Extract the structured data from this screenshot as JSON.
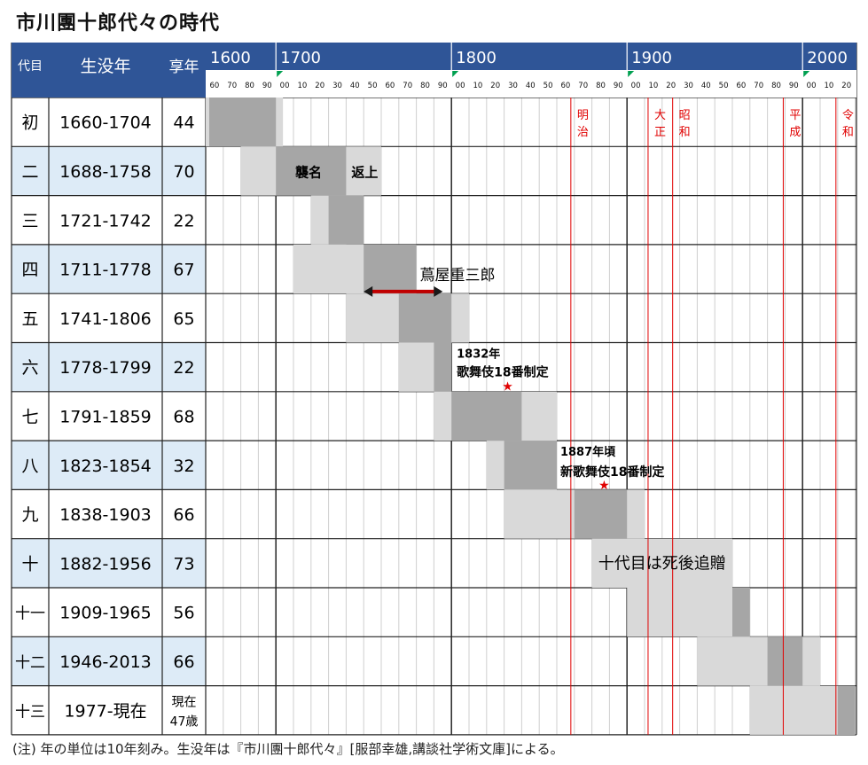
{
  "title": "市川團十郎代々の時代",
  "footnote": "(注) 年の単位は10年刻み。生没年は『市川團十郎代々』[服部幸雄,講談社学術文庫]による。",
  "colors": {
    "header_bg": "#2F5597",
    "header_text": "#ffffff",
    "row_alt_bg": "#DDEBF7",
    "life_bar": "#D9D9D9",
    "tenure_bar": "#A6A6A6",
    "era_line": "#E00000",
    "arrow": "#C00000",
    "star": "#E00000"
  },
  "header": {
    "col_gen": "代目",
    "col_life": "生没年",
    "col_age": "享年"
  },
  "century_labels": [
    "1600",
    "1700",
    "1800",
    "1900",
    "2000"
  ],
  "decade_labels": [
    "60",
    "70",
    "80",
    "90",
    "00",
    "10",
    "20",
    "30",
    "40",
    "50",
    "60",
    "70",
    "80",
    "90",
    "00",
    "10",
    "20",
    "30",
    "40",
    "50",
    "60",
    "70",
    "80",
    "90",
    "00",
    "10",
    "20",
    "30",
    "40",
    "50",
    "60",
    "70",
    "80",
    "90",
    "00",
    "10",
    "20"
  ],
  "chart_data": {
    "type": "gantt",
    "x_axis": {
      "min": 1660,
      "max": 2030,
      "unit": "year",
      "tick_step": 10
    },
    "rows": [
      {
        "gen": "初",
        "life": "1660-1704",
        "age": "44",
        "born": 1660,
        "died": 1704,
        "tenure": [
          1662,
          1700
        ]
      },
      {
        "gen": "二",
        "life": "1688-1758",
        "age": "70",
        "born": 1680,
        "died": 1760,
        "tenure": [
          1700,
          1740
        ]
      },
      {
        "gen": "三",
        "life": "1721-1742",
        "age": "22",
        "born": 1720,
        "died": 1740,
        "tenure": [
          1730,
          1750
        ]
      },
      {
        "gen": "四",
        "life": "1711-1778",
        "age": "67",
        "born": 1710,
        "died": 1780,
        "tenure": [
          1750,
          1780
        ]
      },
      {
        "gen": "五",
        "life": "1741-1806",
        "age": "65",
        "born": 1740,
        "died": 1810,
        "tenure": [
          1770,
          1800
        ]
      },
      {
        "gen": "六",
        "life": "1778-1799",
        "age": "22",
        "born": 1770,
        "died": 1800,
        "tenure": [
          1790,
          1800
        ]
      },
      {
        "gen": "七",
        "life": "1791-1859",
        "age": "68",
        "born": 1790,
        "died": 1860,
        "tenure": [
          1800,
          1840
        ]
      },
      {
        "gen": "八",
        "life": "1823-1854",
        "age": "32",
        "born": 1820,
        "died": 1860,
        "tenure": [
          1830,
          1860
        ]
      },
      {
        "gen": "九",
        "life": "1838-1903",
        "age": "66",
        "born": 1830,
        "died": 1910,
        "tenure": [
          1870,
          1900
        ]
      },
      {
        "gen": "十",
        "life": "1882-1956",
        "age": "73",
        "born": 1880,
        "died": 1960,
        "tenure": null
      },
      {
        "gen": "十一",
        "life": "1909-1965",
        "age": "56",
        "born": 1900,
        "died": 1970,
        "tenure": [
          1960,
          1970
        ]
      },
      {
        "gen": "十二",
        "life": "1946-2013",
        "age": "66",
        "born": 1940,
        "died": 2010,
        "tenure": [
          1980,
          2000
        ]
      },
      {
        "gen": "十三",
        "life": "1977-現在",
        "age": "現在47歳",
        "age_lines": [
          "現在",
          "47歳"
        ],
        "born": 1970,
        "died": 2030,
        "tenure": [
          2020,
          2030
        ]
      }
    ],
    "eras": [
      {
        "name": "明治",
        "year": 1868
      },
      {
        "name": "大正",
        "year": 1912
      },
      {
        "name": "昭和",
        "year": 1926
      },
      {
        "name": "平成",
        "year": 1989
      },
      {
        "name": "令和",
        "year": 2019
      }
    ],
    "annotations": {
      "shumei": "襲名",
      "henjo": "返上",
      "tsutaya": "蔦屋重三郎",
      "tsutaya_span": [
        1750,
        1795
      ],
      "note1_year": "1832年",
      "note1_text": "歌舞伎18番制定",
      "note1_x": 1832,
      "note2_year": "1887年頃",
      "note2_text": "新歌舞伎18番制定",
      "note2_x": 1887,
      "tenth": "十代目は死後追贈"
    }
  }
}
